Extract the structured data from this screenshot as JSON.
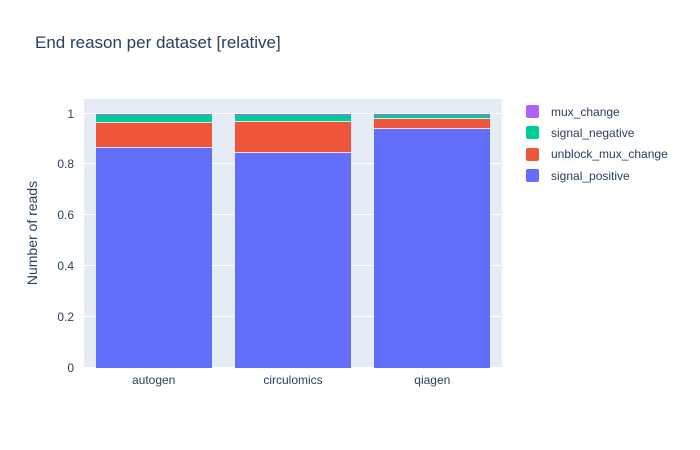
{
  "chart_data": {
    "type": "bar",
    "barmode": "relative_stacked",
    "title": "End reason per dataset [relative]",
    "xlabel": "",
    "ylabel": "Number of reads",
    "categories": [
      "autogen",
      "circulomics",
      "qiagen"
    ],
    "series": [
      {
        "name": "signal_positive",
        "color": "#636EFA",
        "values": [
          0.866,
          0.843,
          0.938
        ]
      },
      {
        "name": "unblock_mux_change",
        "color": "#EF553B",
        "values": [
          0.098,
          0.122,
          0.039
        ]
      },
      {
        "name": "signal_negative",
        "color": "#00CC96",
        "values": [
          0.034,
          0.033,
          0.021
        ]
      },
      {
        "name": "mux_change",
        "color": "#AB63FA",
        "values": [
          0.002,
          0.002,
          0.002
        ]
      }
    ],
    "legend": {
      "position": "right",
      "order_top_to_bottom": [
        "mux_change",
        "signal_negative",
        "unblock_mux_change",
        "signal_positive"
      ]
    },
    "ylim": [
      0,
      1.057
    ],
    "yticks": [
      0,
      0.2,
      0.4,
      0.6,
      0.8,
      1
    ],
    "grid": true,
    "colors": {
      "plot_background": "#E5ECF6",
      "gridline": "#FFFFFF",
      "text": "#2A3F5F"
    }
  }
}
